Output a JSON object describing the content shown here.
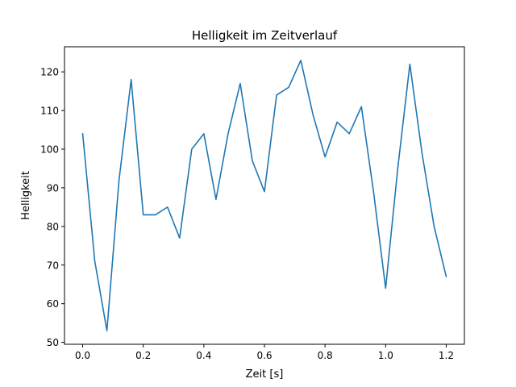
{
  "chart_data": {
    "type": "line",
    "title": "Helligkeit im Zeitverlauf",
    "xlabel": "Zeit [s]",
    "ylabel": "Helligkeit",
    "xlim": [
      -0.06,
      1.26
    ],
    "ylim": [
      49.5,
      126.5
    ],
    "xticks": [
      0.0,
      0.2,
      0.4,
      0.6,
      0.8,
      1.0,
      1.2
    ],
    "xtick_labels": [
      "0.0",
      "0.2",
      "0.4",
      "0.6",
      "0.8",
      "1.0",
      "1.2"
    ],
    "yticks": [
      50,
      60,
      70,
      80,
      90,
      100,
      110,
      120
    ],
    "ytick_labels": [
      "50",
      "60",
      "70",
      "80",
      "90",
      "100",
      "110",
      "120"
    ],
    "grid": false,
    "series": [
      {
        "color": "#1f77b4",
        "x": [
          0.0,
          0.04,
          0.08,
          0.12,
          0.16,
          0.2,
          0.24,
          0.28,
          0.32,
          0.36,
          0.4,
          0.44,
          0.48,
          0.52,
          0.56,
          0.6,
          0.64,
          0.68,
          0.72,
          0.76,
          0.8,
          0.84,
          0.88,
          0.92,
          0.96,
          1.0,
          1.04,
          1.08,
          1.12,
          1.16,
          1.2
        ],
        "y": [
          104,
          71,
          53,
          92,
          118,
          83,
          83,
          85,
          77,
          100,
          104,
          87,
          104,
          117,
          97,
          89,
          114,
          116,
          123,
          109,
          98,
          107,
          104,
          111,
          89,
          64,
          95,
          122,
          99,
          80,
          67
        ]
      }
    ]
  }
}
